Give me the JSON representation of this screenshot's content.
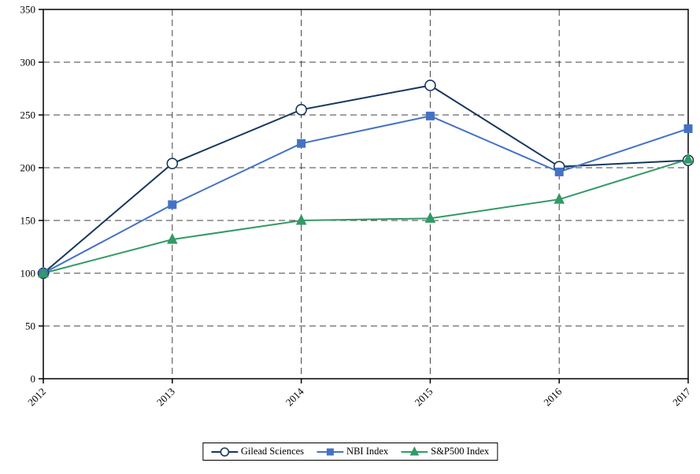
{
  "chart_data": {
    "type": "line",
    "categories": [
      "2012",
      "2013",
      "2014",
      "2015",
      "2016",
      "2017"
    ],
    "series": [
      {
        "name": "Gilead Sciences",
        "color": "#17375E",
        "marker": "circle",
        "marker_fill": "#FFFFFF",
        "values": [
          100,
          204,
          255,
          278,
          201,
          207
        ]
      },
      {
        "name": "NBI Index",
        "color": "#4472C4",
        "marker": "square",
        "marker_fill": "#4472C4",
        "values": [
          100,
          165,
          223,
          249,
          196,
          237
        ]
      },
      {
        "name": "S&P500 Index",
        "color": "#339966",
        "marker": "triangle",
        "marker_fill": "#339966",
        "values": [
          100,
          132,
          150,
          152,
          170,
          208
        ]
      }
    ],
    "title": "",
    "xlabel": "",
    "ylabel": "",
    "ylim": [
      0,
      350
    ],
    "ytick_interval": 50,
    "yticks": [
      0,
      50,
      100,
      150,
      200,
      250,
      300,
      350
    ],
    "grid": "dashed",
    "grid_color": "#404040",
    "axis_color": "#000000",
    "legend_position": "bottom"
  }
}
